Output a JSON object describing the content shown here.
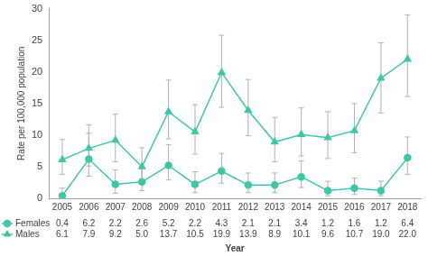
{
  "chart_data": {
    "type": "line",
    "x_label": "Year",
    "y_label": "Rate per 100,000 population",
    "categories": [
      "2005",
      "2006",
      "2007",
      "2008",
      "2009",
      "2010",
      "2011",
      "2012",
      "2013",
      "2014",
      "2015",
      "2016",
      "2017",
      "2018"
    ],
    "ylim": [
      0,
      30
    ],
    "yticks": [
      0,
      5,
      10,
      15,
      20,
      25,
      30
    ],
    "grid": false,
    "data_labels": true,
    "series": [
      {
        "name": "Females",
        "color": "#3fc6a6",
        "marker": "circle",
        "line_style": "solid",
        "values": [
          0.4,
          6.2,
          2.2,
          2.6,
          5.2,
          2.2,
          4.3,
          2.1,
          2.1,
          3.4,
          1.2,
          1.6,
          1.2,
          6.4
        ],
        "value_labels": [
          "0.4",
          "6.2",
          "2.2",
          "2.6",
          "5.2",
          "2.2",
          "4.3",
          "2.1",
          "2.1",
          "3.4",
          "1.2",
          "1.6",
          "1.2",
          "6.4"
        ],
        "lower": [
          0,
          3.5,
          0.8,
          1.2,
          2.9,
          0.9,
          2.4,
          0.9,
          0.9,
          1.7,
          0.4,
          0.6,
          0.4,
          3.8
        ],
        "upper": [
          1.6,
          10.3,
          4.5,
          5.0,
          8.5,
          4.2,
          7.1,
          4.0,
          4.0,
          5.9,
          2.7,
          3.2,
          2.7,
          9.7
        ]
      },
      {
        "name": "Males",
        "color": "#3fc6a6",
        "marker": "triangle",
        "line_style": "solid",
        "values": [
          6.1,
          7.9,
          9.2,
          5.0,
          13.7,
          10.5,
          19.9,
          13.9,
          8.9,
          10.1,
          9.6,
          10.7,
          19.0,
          22.0
        ],
        "value_labels": [
          "6.1",
          "7.9",
          "9.2",
          "5.0",
          "13.7",
          "10.5",
          "19.9",
          "13.9",
          "8.9",
          "10.1",
          "9.6",
          "10.7",
          "19.0",
          "22.0"
        ],
        "lower": [
          3.8,
          5.1,
          5.8,
          2.9,
          9.4,
          7.0,
          14.4,
          9.9,
          5.8,
          6.7,
          6.3,
          7.2,
          13.5,
          16.1
        ],
        "upper": [
          9.3,
          11.6,
          13.3,
          8.0,
          18.7,
          14.8,
          25.8,
          18.8,
          12.8,
          14.3,
          13.7,
          15.0,
          24.6,
          29.0
        ]
      }
    ]
  }
}
